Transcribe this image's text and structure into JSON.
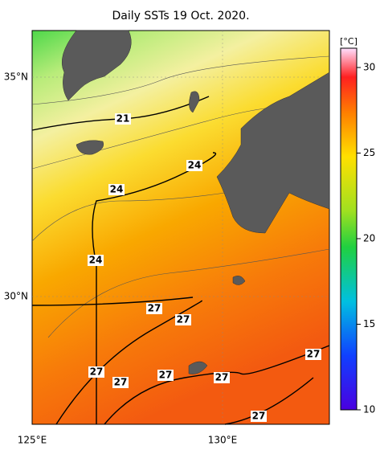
{
  "title": "Daily SSTs 19 Oct. 2020.",
  "lat_labels": [
    "35°N",
    "30°N"
  ],
  "lon_labels": [
    "125°E",
    "130°E"
  ],
  "colorbar": {
    "unit": "[°C]",
    "ticks": [
      10,
      15,
      20,
      25,
      30
    ]
  },
  "contour_labels": [
    "21",
    "24",
    "24",
    "24",
    "27",
    "27",
    "27",
    "27",
    "27",
    "27",
    "27",
    "27"
  ]
}
